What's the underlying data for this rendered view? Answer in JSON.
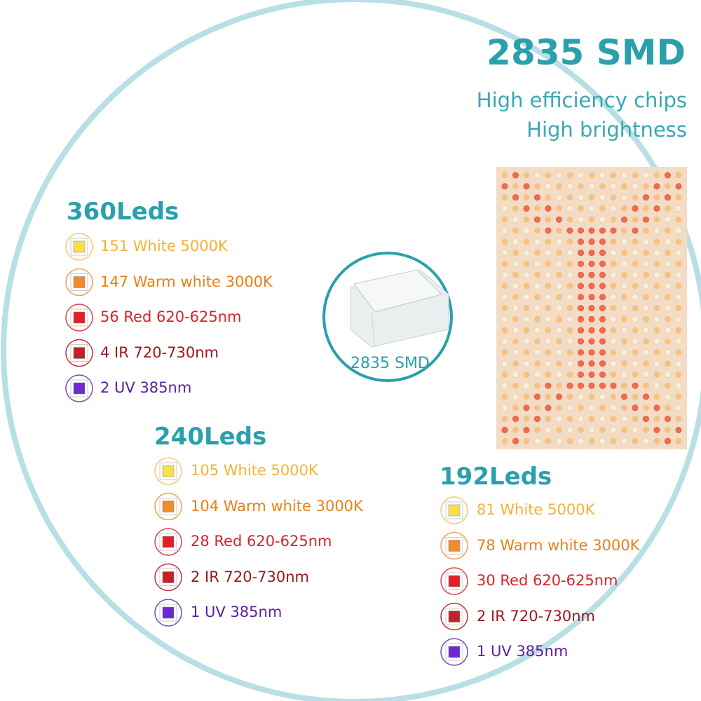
{
  "header": {
    "title": "2835 SMD",
    "lines": [
      "High efficiency chips",
      "High brightness"
    ]
  },
  "badge": {
    "label": "2835 SMD"
  },
  "groups": [
    {
      "title": "360Leds",
      "items": [
        "151 White 5000K",
        "147 Warm white 3000K",
        "56 Red 620-625nm",
        "4 IR 720-730nm",
        "2 UV 385nm"
      ]
    },
    {
      "title": "240Leds",
      "items": [
        "105 White 5000K",
        "104 Warm white 3000K",
        "28 Red 620-625nm",
        "2 IR 720-730nm",
        "1 UV 385nm"
      ]
    },
    {
      "title": "192Leds",
      "items": [
        "81 White 5000K",
        "78 Warm white 3000K",
        "30 Red 620-625nm",
        "2 IR 720-730nm",
        "1 UV 385nm"
      ]
    }
  ]
}
